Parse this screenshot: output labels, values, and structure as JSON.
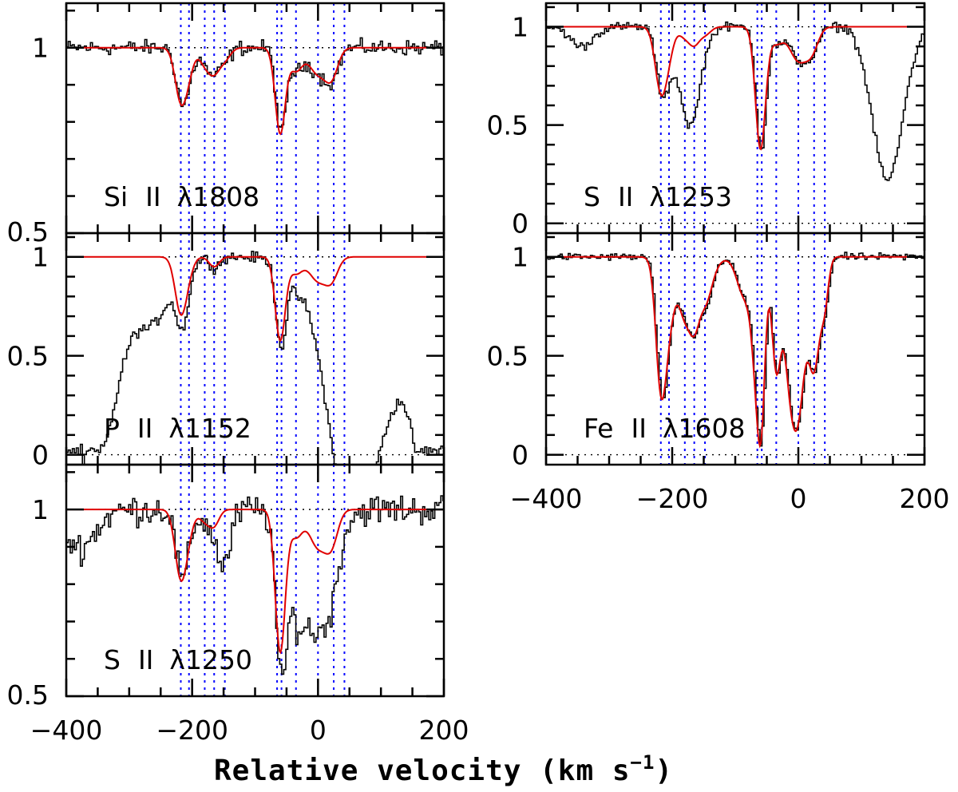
{
  "chart_data": {
    "type": "line",
    "xlabel": "Relative velocity (km s",
    "xlabel_exponent": "−1",
    "xlabel_close": ")",
    "x_unit": "km s^-1",
    "xlim": [
      -400,
      200
    ],
    "x_tick_labels": [
      "−400",
      "−200",
      "0",
      "200"
    ],
    "x_ticks_major": [
      -400,
      -200,
      0,
      200
    ],
    "x_ticks_minor": [
      -350,
      -300,
      -250,
      -150,
      -100,
      -50,
      50,
      100,
      150
    ],
    "component_velocities": [
      -218,
      -205,
      -180,
      -165,
      -148,
      -65,
      -58,
      -35,
      0,
      25,
      42
    ],
    "colors": {
      "data": "#000000",
      "fit": "#e00000",
      "components": "#0000ff",
      "axis": "#000000"
    },
    "panels": [
      {
        "id": "si2-1808",
        "ion": "Si",
        "stage": "II",
        "lambda": "λ",
        "wavelength": "1808",
        "ylim": [
          0.5,
          1.12
        ],
        "y_ticks_major": [
          0.5,
          1.0
        ],
        "y_tick_labels": [
          {
            "v": 0.5,
            "t": "0.5"
          },
          {
            "v": 1.0,
            "t": "1"
          }
        ],
        "y_ticks_minor": [
          0.6,
          0.7,
          0.8,
          0.9,
          1.1
        ],
        "dotted_levels": [
          1.0
        ],
        "noise": 0.022,
        "fit_features": [
          {
            "v": -218,
            "d": 0.14,
            "w": 9
          },
          {
            "v": -205,
            "d": 0.05,
            "w": 8
          },
          {
            "v": -180,
            "d": 0.04,
            "w": 9
          },
          {
            "v": -165,
            "d": 0.06,
            "w": 9
          },
          {
            "v": -148,
            "d": 0.03,
            "w": 9
          },
          {
            "v": -60,
            "d": 0.23,
            "w": 8
          },
          {
            "v": -35,
            "d": 0.06,
            "w": 10
          },
          {
            "v": 0,
            "d": 0.07,
            "w": 14
          },
          {
            "v": 22,
            "d": 0.07,
            "w": 10
          }
        ],
        "data_extra": []
      },
      {
        "id": "p2-1152",
        "ion": "P",
        "stage": "II",
        "lambda": "λ",
        "wavelength": "1152",
        "ylim": [
          -0.05,
          1.12
        ],
        "y_ticks_major": [
          0,
          0.5,
          1.0
        ],
        "y_tick_labels": [
          {
            "v": 0,
            "t": "0"
          },
          {
            "v": 0.5,
            "t": "0.5"
          },
          {
            "v": 1.0,
            "t": "1"
          }
        ],
        "y_ticks_minor": [
          0.1,
          0.2,
          0.3,
          0.4,
          0.6,
          0.7,
          0.8,
          0.9,
          1.1
        ],
        "dotted_levels": [
          0,
          1.0
        ],
        "noise": 0.03,
        "fit_features": [
          {
            "v": -218,
            "d": 0.28,
            "w": 9
          },
          {
            "v": -205,
            "d": 0.05,
            "w": 8
          },
          {
            "v": -165,
            "d": 0.05,
            "w": 8
          },
          {
            "v": -60,
            "d": 0.42,
            "w": 8
          },
          {
            "v": -35,
            "d": 0.08,
            "w": 10
          },
          {
            "v": 0,
            "d": 0.12,
            "w": 14
          },
          {
            "v": 22,
            "d": 0.1,
            "w": 10
          }
        ],
        "data_extra": [
          {
            "v": -350,
            "d": 0.98,
            "w": 32
          },
          {
            "v": -395,
            "d": 1.0,
            "w": 14
          },
          {
            "v": -265,
            "d": 0.32,
            "w": 28
          },
          {
            "v": 80,
            "d": 0.92,
            "w": 55
          },
          {
            "v": 50,
            "d": 0.6,
            "w": 25
          },
          {
            "v": 175,
            "d": 1.0,
            "w": 22
          }
        ]
      },
      {
        "id": "s2-1250",
        "ion": "S",
        "stage": "II",
        "lambda": "λ",
        "wavelength": "1250",
        "ylim": [
          0.5,
          1.12
        ],
        "y_ticks_major": [
          0.5,
          1.0
        ],
        "y_tick_labels": [
          {
            "v": 0.5,
            "t": "0.5"
          },
          {
            "v": 1.0,
            "t": "1"
          }
        ],
        "y_ticks_minor": [
          0.6,
          0.7,
          0.8,
          0.9,
          1.1
        ],
        "dotted_levels": [
          1.0
        ],
        "noise": 0.045,
        "fit_features": [
          {
            "v": -218,
            "d": 0.18,
            "w": 9
          },
          {
            "v": -205,
            "d": 0.04,
            "w": 8
          },
          {
            "v": -180,
            "d": 0.03,
            "w": 9
          },
          {
            "v": -165,
            "d": 0.04,
            "w": 8
          },
          {
            "v": -60,
            "d": 0.38,
            "w": 8
          },
          {
            "v": -35,
            "d": 0.07,
            "w": 10
          },
          {
            "v": 0,
            "d": 0.1,
            "w": 14
          },
          {
            "v": 22,
            "d": 0.08,
            "w": 10
          }
        ],
        "data_extra": [
          {
            "v": -380,
            "d": 0.1,
            "w": 25
          },
          {
            "v": -150,
            "d": 0.14,
            "w": 10
          },
          {
            "v": -30,
            "d": 0.22,
            "w": 22
          },
          {
            "v": 10,
            "d": 0.15,
            "w": 22
          }
        ]
      },
      {
        "id": "s2-1253",
        "ion": "S",
        "stage": "II",
        "lambda": "λ",
        "wavelength": "1253",
        "ylim": [
          -0.05,
          1.12
        ],
        "y_ticks_major": [
          0,
          0.5,
          1.0
        ],
        "y_tick_labels": [
          {
            "v": 0,
            "t": "0"
          },
          {
            "v": 0.5,
            "t": "0.5"
          },
          {
            "v": 1.0,
            "t": "1"
          }
        ],
        "y_ticks_minor": [
          0.1,
          0.2,
          0.3,
          0.4,
          0.6,
          0.7,
          0.8,
          0.9,
          1.1
        ],
        "dotted_levels": [
          0,
          1.0
        ],
        "noise": 0.025,
        "fit_features": [
          {
            "v": -218,
            "d": 0.32,
            "w": 9
          },
          {
            "v": -205,
            "d": 0.1,
            "w": 8
          },
          {
            "v": -180,
            "d": 0.05,
            "w": 9
          },
          {
            "v": -165,
            "d": 0.08,
            "w": 8
          },
          {
            "v": -148,
            "d": 0.04,
            "w": 9
          },
          {
            "v": -60,
            "d": 0.62,
            "w": 8
          },
          {
            "v": -35,
            "d": 0.08,
            "w": 10
          },
          {
            "v": 0,
            "d": 0.17,
            "w": 14
          },
          {
            "v": 22,
            "d": 0.1,
            "w": 10
          }
        ],
        "data_extra": [
          {
            "v": -345,
            "d": 0.1,
            "w": 18
          },
          {
            "v": -175,
            "d": 0.42,
            "w": 16
          },
          {
            "v": 140,
            "d": 0.78,
            "w": 22
          }
        ]
      },
      {
        "id": "fe2-1608",
        "ion": "Fe",
        "stage": "II",
        "lambda": "λ",
        "wavelength": "1608",
        "ylim": [
          -0.05,
          1.12
        ],
        "y_ticks_major": [
          0,
          0.5,
          1.0
        ],
        "y_tick_labels": [
          {
            "v": 0,
            "t": "0"
          },
          {
            "v": 0.5,
            "t": "0.5"
          },
          {
            "v": 1.0,
            "t": "1"
          }
        ],
        "y_ticks_minor": [
          0.1,
          0.2,
          0.3,
          0.4,
          0.6,
          0.7,
          0.8,
          0.9,
          1.1
        ],
        "dotted_levels": [
          0,
          1.0
        ],
        "noise": 0.02,
        "fit_features": [
          {
            "v": -218,
            "d": 0.62,
            "w": 8
          },
          {
            "v": -205,
            "d": 0.22,
            "w": 8
          },
          {
            "v": -180,
            "d": 0.2,
            "w": 9
          },
          {
            "v": -165,
            "d": 0.26,
            "w": 8
          },
          {
            "v": -148,
            "d": 0.18,
            "w": 10
          },
          {
            "v": -190,
            "d": 0.1,
            "w": 18
          },
          {
            "v": -140,
            "d": 0.05,
            "w": 14
          },
          {
            "v": -85,
            "d": 0.2,
            "w": 12
          },
          {
            "v": -65,
            "d": 0.55,
            "w": 8
          },
          {
            "v": -58,
            "d": 0.5,
            "w": 6
          },
          {
            "v": -35,
            "d": 0.55,
            "w": 7
          },
          {
            "v": -15,
            "d": 0.45,
            "w": 9
          },
          {
            "v": 0,
            "d": 0.72,
            "w": 10
          },
          {
            "v": 25,
            "d": 0.55,
            "w": 9
          },
          {
            "v": 42,
            "d": 0.2,
            "w": 6
          }
        ],
        "data_extra": []
      }
    ]
  }
}
